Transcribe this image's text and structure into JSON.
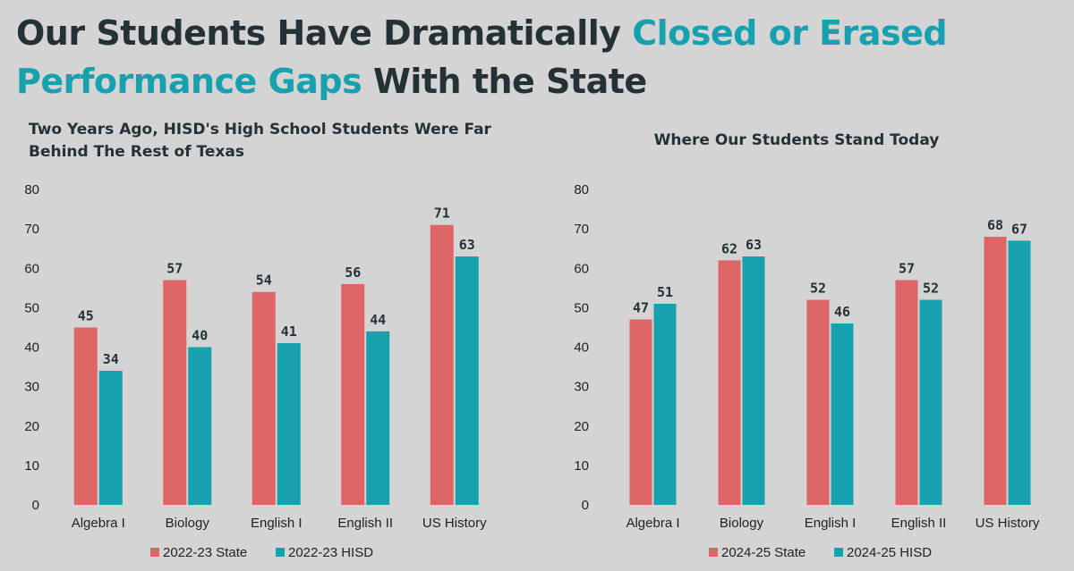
{
  "headline": {
    "part1": "Our Students Have Dramatically ",
    "highlight": "Closed or Erased Performance Gaps",
    "part2": " With the State"
  },
  "colors": {
    "state": "#dd6565",
    "hisd": "#17a0ad",
    "accent": "#17a0ad",
    "text": "#243238"
  },
  "chart_data": [
    {
      "type": "bar",
      "title": "Two Years Ago, HISD's High School Students Were Far Behind The Rest of Texas",
      "categories": [
        "Algebra I",
        "Biology",
        "English I",
        "English II",
        "US History"
      ],
      "series": [
        {
          "name": "2022-23 State",
          "values": [
            45,
            57,
            54,
            56,
            71
          ]
        },
        {
          "name": "2022-23 HISD",
          "values": [
            34,
            40,
            41,
            44,
            63
          ]
        }
      ],
      "ylim": [
        0,
        80
      ],
      "yticks": [
        0,
        10,
        20,
        30,
        40,
        50,
        60,
        70,
        80
      ],
      "grid": false,
      "legend": "bottom"
    },
    {
      "type": "bar",
      "title": "Where Our Students Stand Today",
      "categories": [
        "Algebra I",
        "Biology",
        "English I",
        "English II",
        "US History"
      ],
      "series": [
        {
          "name": "2024-25 State",
          "values": [
            47,
            62,
            52,
            57,
            68
          ]
        },
        {
          "name": "2024-25 HISD",
          "values": [
            51,
            63,
            46,
            52,
            67
          ]
        }
      ],
      "ylim": [
        0,
        80
      ],
      "yticks": [
        0,
        10,
        20,
        30,
        40,
        50,
        60,
        70,
        80
      ],
      "grid": false,
      "legend": "bottom"
    }
  ]
}
